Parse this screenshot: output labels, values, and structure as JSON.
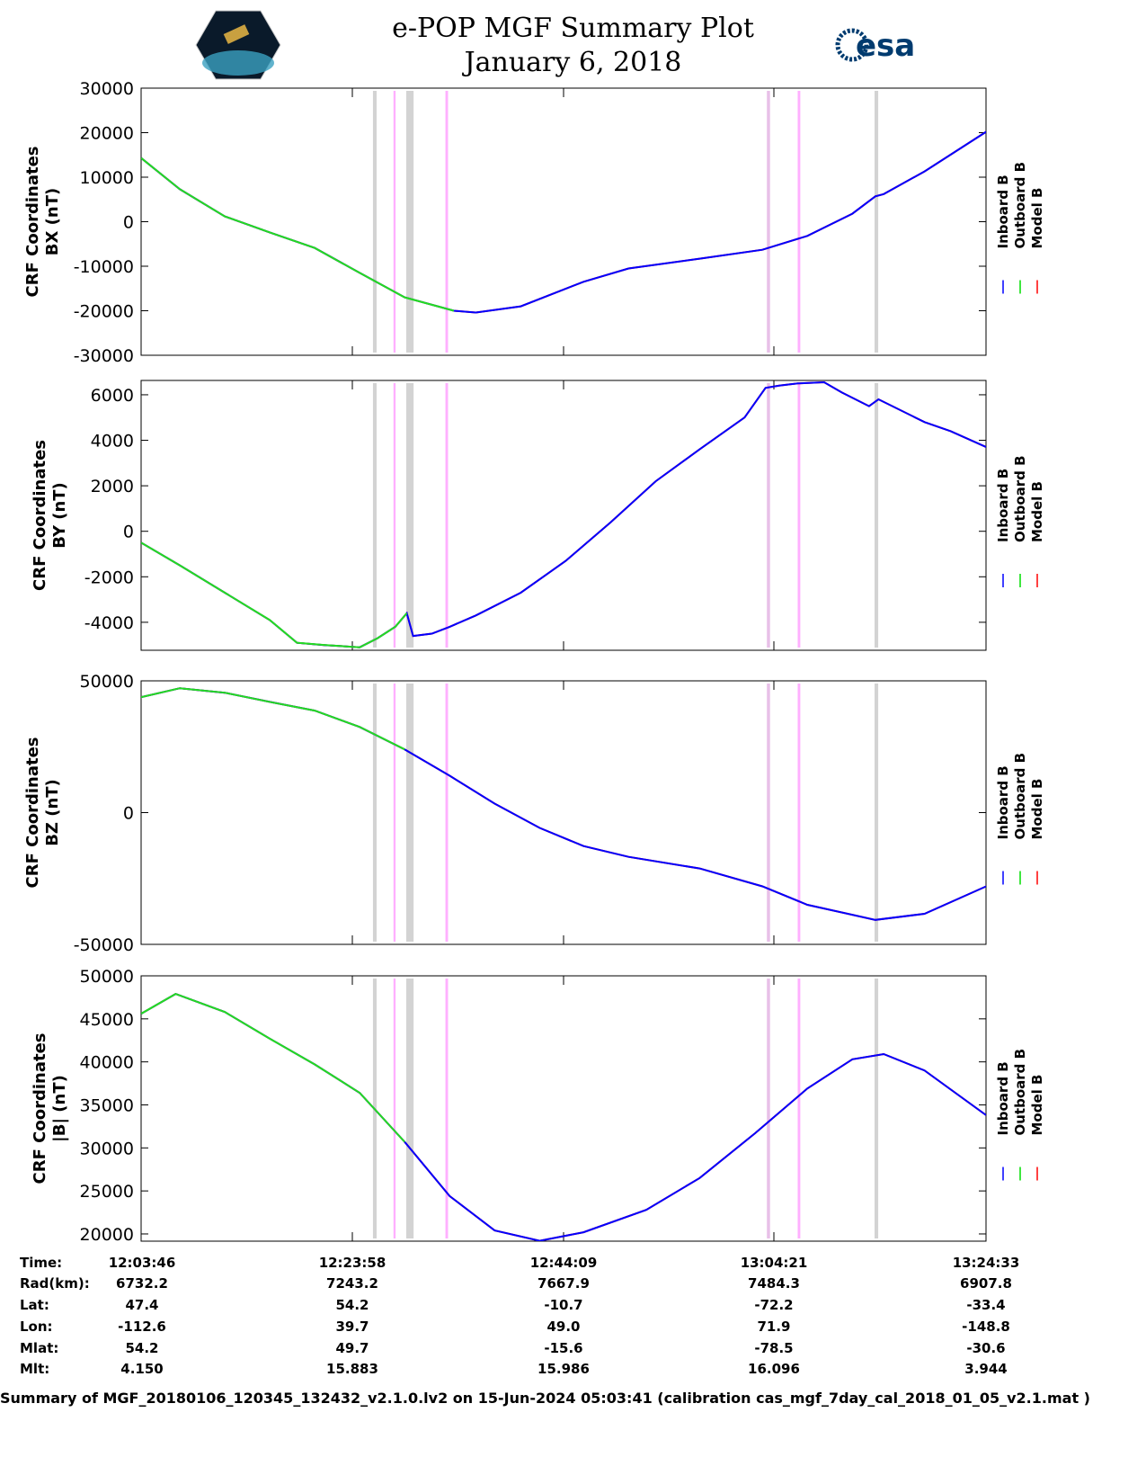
{
  "header": {
    "title": "e-POP MGF Summary Plot",
    "date": "January 6, 2018",
    "logo_left": "CASSIOPE",
    "logo_right": "esa"
  },
  "chart_data": [
    {
      "type": "line",
      "ylabel": [
        "CRF Coordinates",
        "BX (nT)"
      ],
      "ylim": [
        -30000,
        30000
      ],
      "yticks": [
        30000,
        20000,
        10000,
        0,
        -10000,
        -20000,
        -30000
      ],
      "x": [
        0,
        3.7,
        8,
        12.3,
        16.6,
        20.9,
        25.2,
        29.9,
        32,
        36.3,
        42.3,
        46.6,
        53.4,
        59.4,
        63.7,
        68,
        70.2,
        71,
        74.9,
        80.8
      ],
      "inboard": [
        14300,
        7300,
        1200,
        -2400,
        -5900,
        -11500,
        -17000,
        -20000,
        -20400,
        -19000,
        -13500,
        -10500,
        -8300,
        -6300,
        -3200,
        1800,
        5700,
        6200,
        11300,
        20200
      ],
      "outboard_until": 29.9
    },
    {
      "type": "line",
      "ylabel": [
        "CRF Coordinates",
        "BY (nT)"
      ],
      "ylim": [
        -5230,
        6630
      ],
      "yticks": [
        6000,
        4000,
        2000,
        0,
        -2000,
        -4000
      ],
      "x": [
        0,
        3.7,
        8,
        12.3,
        14.9,
        17.5,
        20.9,
        22.6,
        24.3,
        25.4,
        26,
        27.8,
        29.5,
        32,
        36.3,
        40.6,
        44.9,
        49.2,
        53.4,
        57.7,
        59.7,
        61,
        62.8,
        65.3,
        67,
        69.6,
        70.5,
        74.9,
        77.4,
        80.8
      ],
      "inboard": [
        -500,
        -1500,
        -2700,
        -3900,
        -4900,
        -5000,
        -5100,
        -4700,
        -4200,
        -3600,
        -4600,
        -4500,
        -4200,
        -3700,
        -2700,
        -1300,
        400,
        2200,
        3600,
        5000,
        6300,
        6400,
        6500,
        6550,
        6100,
        5500,
        5800,
        4800,
        4400,
        3700
      ],
      "outboard_until": 25.4
    },
    {
      "type": "line",
      "ylabel": [
        "CRF Coordinates",
        "BZ (nT)"
      ],
      "ylim": [
        -50000,
        50000
      ],
      "yticks": [
        50000,
        0,
        -50000
      ],
      "x": [
        0,
        3.7,
        8,
        12.3,
        16.6,
        20.9,
        25.2,
        29.5,
        33.8,
        38.1,
        42.3,
        46.6,
        53.4,
        59.4,
        63.7,
        70.2,
        74.9,
        80.8
      ],
      "inboard": [
        43800,
        47200,
        45500,
        42000,
        38700,
        32500,
        24000,
        14000,
        3400,
        -5800,
        -12700,
        -16800,
        -21200,
        -28000,
        -35000,
        -40700,
        -38400,
        -28000
      ],
      "outboard_until": 26.5
    },
    {
      "type": "line",
      "ylabel": [
        "CRF Coordinates",
        "|B| (nT)"
      ],
      "ylim": [
        19160,
        50000
      ],
      "yticks": [
        50000,
        45000,
        40000,
        35000,
        30000,
        25000,
        20000
      ],
      "x": [
        0,
        3.3,
        8,
        12.3,
        16.6,
        20.9,
        25.2,
        29.5,
        33.8,
        38.1,
        42.3,
        48.3,
        53.4,
        58.7,
        63.7,
        68,
        71,
        74.9,
        80.8
      ],
      "inboard": [
        45600,
        47900,
        45800,
        42700,
        39700,
        36400,
        30700,
        24400,
        20400,
        19200,
        20200,
        22800,
        26500,
        31700,
        36900,
        40300,
        40900,
        39000,
        33800
      ],
      "outboard_until": 25.6
    }
  ],
  "x_range_minutes": [
    0,
    80.78
  ],
  "legend": [
    {
      "label": "Inboard B",
      "color": "#0000ff"
    },
    {
      "label": "Outboard B",
      "color": "#00dd00"
    },
    {
      "label": "Model B",
      "color": "#ff0000"
    }
  ],
  "events": [
    {
      "t": 22.34,
      "color": "#d3d3d3",
      "w": 0.35
    },
    {
      "t": 24.23,
      "color": "#ffb0ff",
      "w": 0.2
    },
    {
      "t": 25.7,
      "color": "#d3d3d3",
      "w": 0.7
    },
    {
      "t": 29.22,
      "color": "#ffb0ff",
      "w": 0.25
    },
    {
      "t": 59.98,
      "color": "#e8c0e8",
      "w": 0.3
    },
    {
      "t": 62.9,
      "color": "#ffb0ff",
      "w": 0.25
    },
    {
      "t": 70.3,
      "color": "#d3d3d3",
      "w": 0.35
    }
  ],
  "table": {
    "row_labels": [
      "Time:",
      "Rad(km):",
      "Lat:",
      "Lon:",
      "Mlat:",
      "Mlt:"
    ],
    "columns": [
      [
        "12:03:46",
        "6732.2",
        "47.4",
        "-112.6",
        "54.2",
        "4.150"
      ],
      [
        "12:23:58",
        "7243.2",
        "54.2",
        "39.7",
        "49.7",
        "15.883"
      ],
      [
        "12:44:09",
        "7667.9",
        "-10.7",
        "49.0",
        "-15.6",
        "15.986"
      ],
      [
        "13:04:21",
        "7484.3",
        "-72.2",
        "71.9",
        "-78.5",
        "16.096"
      ],
      [
        "13:24:33",
        "6907.8",
        "-33.4",
        "-148.8",
        "-30.6",
        "3.944"
      ]
    ]
  },
  "footer": "Summary of MGF_20180106_120345_132432_v2.1.0.lv2 on 15-Jun-2024 05:03:41 (calibration cas_mgf_7day_cal_2018_01_05_v2.1.mat )"
}
